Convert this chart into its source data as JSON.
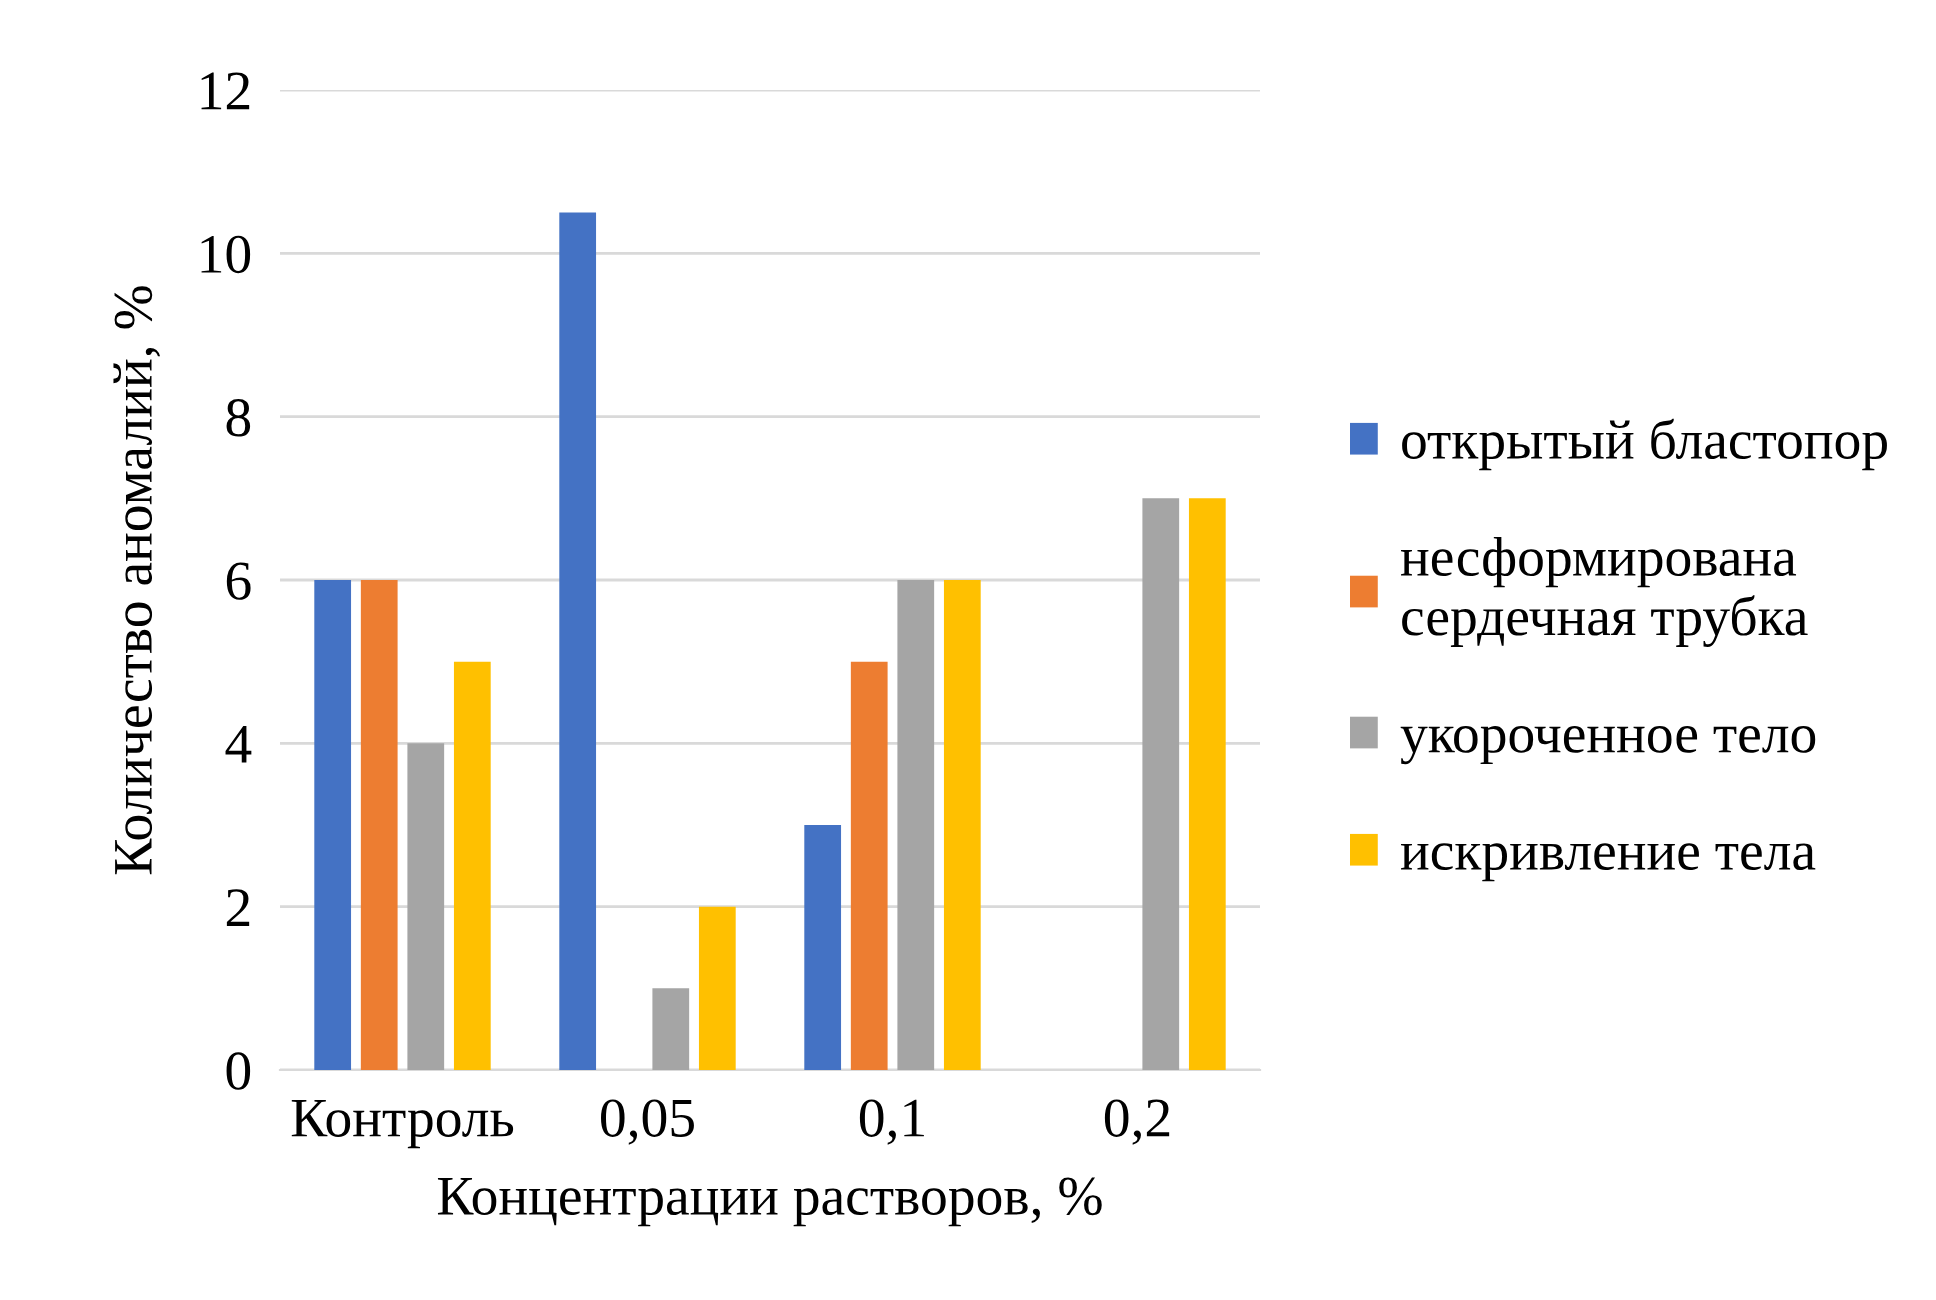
{
  "chart_data": {
    "type": "bar",
    "xlabel": "Концентрации растворов, %",
    "ylabel": "Количество аномалий, %",
    "categories": [
      "Контроль",
      "0,05",
      "0,1",
      "0,2"
    ],
    "series": [
      {
        "name": "открытый бластопор",
        "color": "#4472c4",
        "values": [
          6,
          10.5,
          3,
          0
        ]
      },
      {
        "name": "несформирована\nсердечная трубка",
        "color": "#ed7d31",
        "values": [
          6,
          0,
          5,
          0
        ]
      },
      {
        "name": "укороченное тело",
        "color": "#a5a5a5",
        "values": [
          4,
          1,
          6,
          7
        ]
      },
      {
        "name": "искривление тела",
        "color": "#ffc000",
        "values": [
          5,
          2,
          6,
          7
        ]
      }
    ],
    "ylim": [
      0,
      12
    ],
    "yticks": [
      0,
      2,
      4,
      6,
      8,
      10,
      12
    ],
    "grid": "y",
    "legend": "right"
  }
}
